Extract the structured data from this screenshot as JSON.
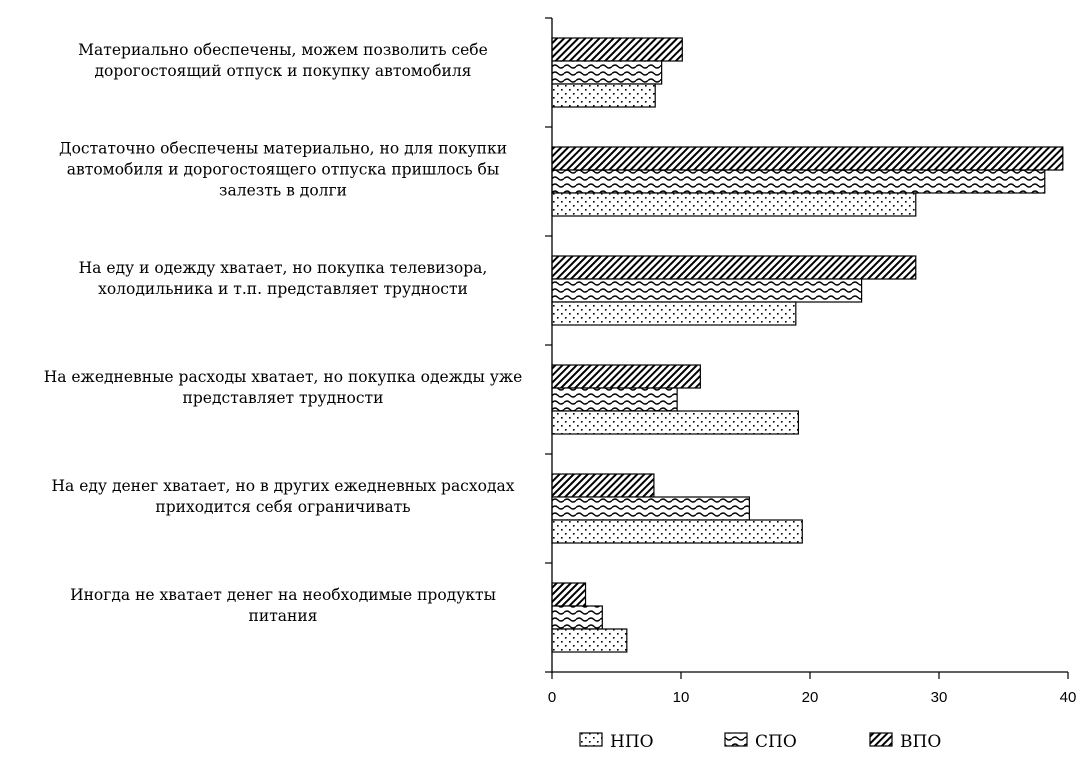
{
  "chart_data": {
    "type": "bar",
    "orientation": "horizontal",
    "categories": [
      [
        "Материально обеспечены, можем позволить себе",
        "дорогостоящий отпуск и покупку автомобиля"
      ],
      [
        "Достаточно обеспечены материально, но для покупки",
        "автомобиля и дорогостоящего отпуска пришлось бы",
        "залезть в долги"
      ],
      [
        "На еду и одежду хватает, но покупка телевизора,",
        "холодильника и т.п. представляет трудности"
      ],
      [
        "На ежедневные расходы хватает, но покупка одежды уже",
        "представляет трудности"
      ],
      [
        "На еду денег хватает, но в других ежедневных расходах",
        "приходится себя ограничивать"
      ],
      [
        "Иногда не хватает денег на необходимые продукты",
        "питания"
      ]
    ],
    "series": [
      {
        "name": "НПО",
        "pattern": "dots",
        "values": [
          8.0,
          28.2,
          18.9,
          19.1,
          19.4,
          5.8
        ]
      },
      {
        "name": "СПО",
        "pattern": "waves",
        "values": [
          8.5,
          38.2,
          24.0,
          9.7,
          15.3,
          3.9
        ]
      },
      {
        "name": "ВПО",
        "pattern": "diagonal",
        "values": [
          10.1,
          39.6,
          28.2,
          11.5,
          7.9,
          2.6
        ]
      }
    ],
    "xlim": [
      0,
      40
    ],
    "xticks": [
      0,
      10,
      20,
      30,
      40
    ],
    "grid": false,
    "legend_position": "bottom"
  }
}
